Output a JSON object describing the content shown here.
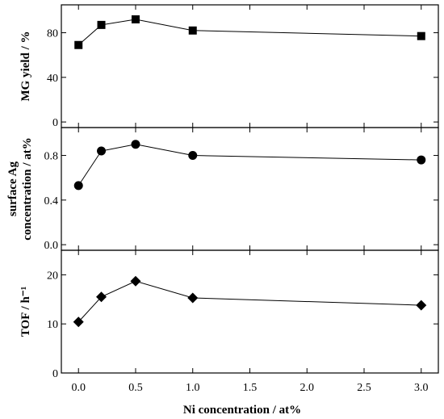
{
  "chart_data": {
    "type": "line",
    "xlabel": "Ni concentration / at%",
    "xlim": [
      -0.15,
      3.15
    ],
    "xticks": [
      0.0,
      0.5,
      1.0,
      1.5,
      2.0,
      2.5,
      3.0
    ],
    "xtick_labels": [
      "0.0",
      "0.5",
      "1.0",
      "1.5",
      "2.0",
      "2.5",
      "3.0"
    ],
    "panels": [
      {
        "ylabel": "MG yield / %",
        "ylim": [
          -5,
          105
        ],
        "yticks": [
          0,
          40,
          80
        ],
        "ytick_labels": [
          "0",
          "40",
          "80"
        ],
        "marker": "square",
        "x": [
          0.0,
          0.2,
          0.5,
          1.0,
          3.0
        ],
        "y": [
          69,
          87,
          92,
          82,
          77
        ]
      },
      {
        "ylabel": "surface Ag concentration / at%",
        "ylabel_lines": [
          "surface Ag",
          "concentration / at%"
        ],
        "ylim": [
          -0.05,
          1.05
        ],
        "yticks": [
          0.0,
          0.4,
          0.8
        ],
        "ytick_labels": [
          "0.0",
          "0.4",
          "0.8"
        ],
        "marker": "circle",
        "x": [
          0.0,
          0.2,
          0.5,
          1.0,
          3.0
        ],
        "y": [
          0.53,
          0.84,
          0.9,
          0.8,
          0.76
        ]
      },
      {
        "ylabel": "TOF / h⁻¹",
        "ylim": [
          0,
          25
        ],
        "yticks": [
          0,
          10,
          20
        ],
        "ytick_labels": [
          "0",
          "10",
          "20"
        ],
        "marker": "diamond",
        "x": [
          0.0,
          0.2,
          0.5,
          1.0,
          3.0
        ],
        "y": [
          10.4,
          15.5,
          18.7,
          15.3,
          13.8
        ]
      }
    ]
  }
}
